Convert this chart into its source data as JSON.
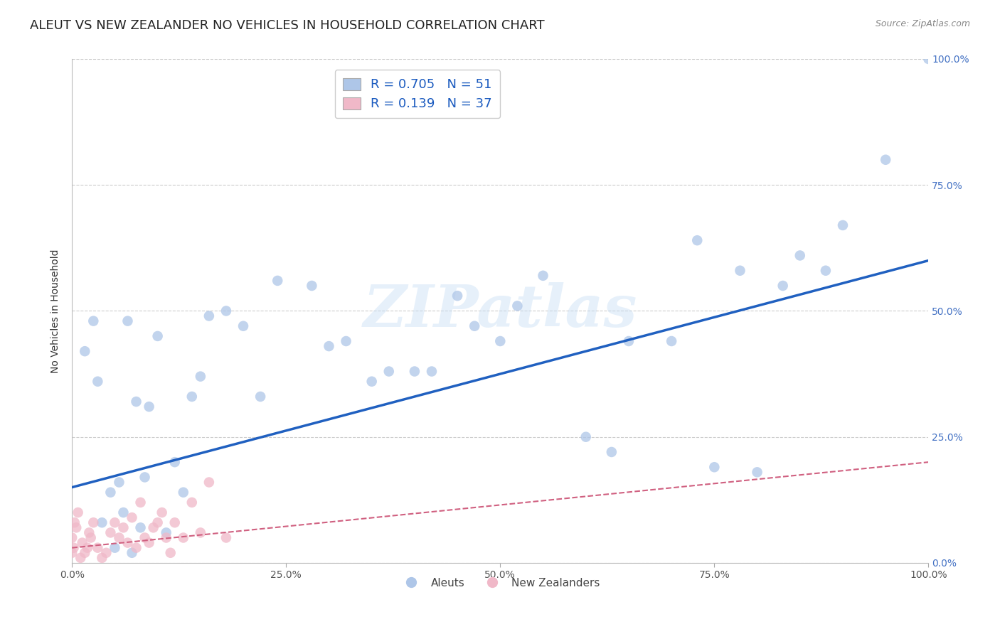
{
  "title": "ALEUT VS NEW ZEALANDER NO VEHICLES IN HOUSEHOLD CORRELATION CHART",
  "source": "Source: ZipAtlas.com",
  "ylabel": "No Vehicles in Household",
  "watermark": "ZIPatlas",
  "legend_blue_r": "0.705",
  "legend_blue_n": "51",
  "legend_pink_r": "0.139",
  "legend_pink_n": "37",
  "legend_blue_label": "Aleuts",
  "legend_pink_label": "New Zealanders",
  "blue_color": "#aec6e8",
  "pink_color": "#f0b8c8",
  "blue_line_color": "#2060c0",
  "pink_line_color": "#d06080",
  "aleuts_x": [
    1.5,
    2.5,
    3.0,
    3.5,
    4.5,
    5.0,
    5.5,
    6.0,
    6.5,
    7.0,
    7.5,
    8.0,
    8.5,
    9.0,
    10.0,
    11.0,
    12.0,
    13.0,
    14.0,
    15.0,
    16.0,
    18.0,
    20.0,
    22.0,
    24.0,
    28.0,
    30.0,
    32.0,
    35.0,
    37.0,
    40.0,
    42.0,
    45.0,
    47.0,
    50.0,
    52.0,
    55.0,
    60.0,
    63.0,
    65.0,
    70.0,
    73.0,
    75.0,
    78.0,
    80.0,
    83.0,
    85.0,
    88.0,
    90.0,
    95.0,
    100.0
  ],
  "aleuts_y": [
    42.0,
    48.0,
    36.0,
    8.0,
    14.0,
    3.0,
    16.0,
    10.0,
    48.0,
    2.0,
    32.0,
    7.0,
    17.0,
    31.0,
    45.0,
    6.0,
    20.0,
    14.0,
    33.0,
    37.0,
    49.0,
    50.0,
    47.0,
    33.0,
    56.0,
    55.0,
    43.0,
    44.0,
    36.0,
    38.0,
    38.0,
    38.0,
    53.0,
    47.0,
    44.0,
    51.0,
    57.0,
    25.0,
    22.0,
    44.0,
    44.0,
    64.0,
    19.0,
    58.0,
    18.0,
    55.0,
    61.0,
    58.0,
    67.0,
    80.0,
    100.0
  ],
  "nz_x": [
    0.0,
    0.0,
    0.2,
    0.3,
    0.5,
    0.7,
    1.0,
    1.2,
    1.5,
    1.8,
    2.0,
    2.2,
    2.5,
    3.0,
    3.5,
    4.0,
    4.5,
    5.0,
    5.5,
    6.0,
    6.5,
    7.0,
    7.5,
    8.0,
    8.5,
    9.0,
    9.5,
    10.0,
    10.5,
    11.0,
    11.5,
    12.0,
    13.0,
    14.0,
    15.0,
    16.0,
    18.0
  ],
  "nz_y": [
    2.0,
    5.0,
    3.0,
    8.0,
    7.0,
    10.0,
    1.0,
    4.0,
    2.0,
    3.0,
    6.0,
    5.0,
    8.0,
    3.0,
    1.0,
    2.0,
    6.0,
    8.0,
    5.0,
    7.0,
    4.0,
    9.0,
    3.0,
    12.0,
    5.0,
    4.0,
    7.0,
    8.0,
    10.0,
    5.0,
    2.0,
    8.0,
    5.0,
    12.0,
    6.0,
    16.0,
    5.0
  ],
  "xlim": [
    0,
    100
  ],
  "ylim": [
    0,
    100
  ],
  "xtick_vals": [
    0,
    25,
    50,
    75,
    100
  ],
  "ytick_vals": [
    0,
    25,
    50,
    75,
    100
  ],
  "xticklabels": [
    "0.0%",
    "25.0%",
    "50.0%",
    "75.0%",
    "100.0%"
  ],
  "right_yticklabels": [
    "0.0%",
    "25.0%",
    "50.0%",
    "75.0%",
    "100.0%"
  ],
  "grid_color": "#cccccc",
  "background_color": "#ffffff",
  "title_fontsize": 13,
  "axis_label_fontsize": 10,
  "tick_fontsize": 10,
  "blue_line_start_y": 15.0,
  "blue_line_end_y": 60.0,
  "pink_line_start_y": 3.0,
  "pink_line_end_y": 20.0
}
